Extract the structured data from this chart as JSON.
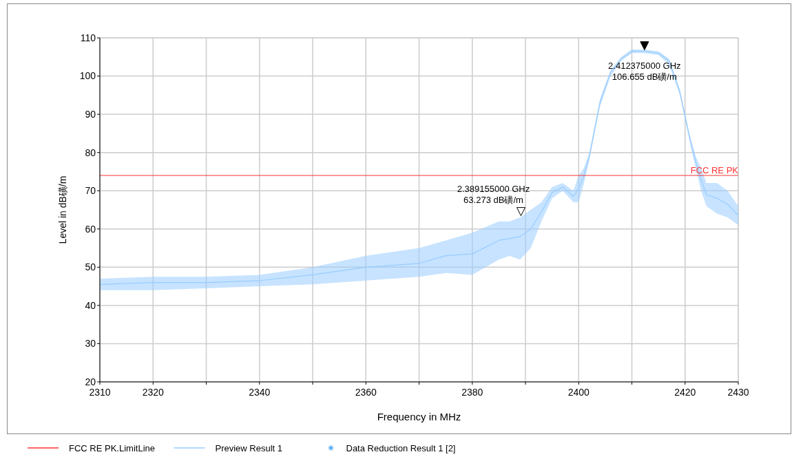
{
  "chart_data": {
    "type": "line",
    "xlabel": "Frequency in MHz",
    "ylabel": "Level in dB磺/m",
    "xlim": [
      2310,
      2430
    ],
    "ylim": [
      20,
      110
    ],
    "xticks": [
      2310,
      2320,
      {
        "value": 2330,
        "label": null
      },
      2340,
      {
        "value": 2350,
        "label": null
      },
      2360,
      {
        "value": 2370,
        "label": null
      },
      2380,
      {
        "value": 2390,
        "label": null
      },
      2400,
      {
        "value": 2410,
        "label": null
      },
      2420,
      2430
    ],
    "yticks": [
      20,
      30,
      40,
      50,
      60,
      70,
      80,
      90,
      100,
      110
    ],
    "grid": true,
    "legend": "bottom",
    "series": [
      {
        "name": "FCC RE PK.LimitLine",
        "type": "line",
        "color": "#ff3333",
        "x": [
          2310,
          2430
        ],
        "values": [
          74,
          74
        ]
      },
      {
        "name": "Preview Result 1",
        "type": "line",
        "color": "#99ccff",
        "x": [
          2310,
          2320,
          2330,
          2340,
          2350,
          2360,
          2370,
          2375,
          2380,
          2385,
          2387,
          2389,
          2391,
          2393,
          2395,
          2397,
          2399,
          2400,
          2401,
          2402,
          2403,
          2404,
          2406,
          2408,
          2410,
          2412.375,
          2415,
          2417,
          2419,
          2421,
          2422,
          2423,
          2424,
          2426,
          2428,
          2430
        ],
        "values": [
          45.5,
          46,
          46,
          46.5,
          48,
          50,
          51,
          53,
          53.5,
          57,
          57.5,
          58,
          60,
          64.5,
          69.5,
          71,
          68.5,
          70.5,
          74,
          79,
          86,
          93,
          101,
          104.5,
          106.5,
          106.5,
          106,
          104,
          96,
          83,
          77.5,
          73,
          69,
          68,
          66.5,
          63.5
        ],
        "lower": [
          44,
          44,
          44.5,
          45,
          45.5,
          46.5,
          47.5,
          48.5,
          48,
          52,
          53,
          52,
          55,
          62,
          68,
          70,
          67,
          67,
          72,
          78,
          85,
          92,
          100,
          104,
          106,
          106,
          105.5,
          103,
          95,
          82,
          76,
          70,
          66,
          64,
          63,
          61
        ],
        "upper": [
          47,
          47.5,
          47.5,
          48,
          50,
          53,
          55,
          57,
          59,
          62,
          62,
          63,
          65,
          67,
          71,
          72,
          70,
          74,
          76,
          80,
          87,
          94,
          101.5,
          105,
          107,
          106.9,
          106.5,
          104.5,
          96.5,
          84,
          79,
          76,
          72,
          72,
          70,
          66
        ]
      },
      {
        "name": "Data Reduction Result 1 [2]",
        "type": "scatter",
        "marker": "star",
        "color": "#3399ee"
      }
    ],
    "annotations": [
      {
        "text": "2.412375000 GHz\n106.655 dB磺/m",
        "x": 2412.375,
        "y": 106.655
      },
      {
        "text": "2.389155000 GHz\n63.273 dB磺/m",
        "x": 2389.155,
        "y": 63.273
      },
      {
        "text": "FCC RE PK",
        "x": 2430,
        "y": 74
      }
    ]
  }
}
